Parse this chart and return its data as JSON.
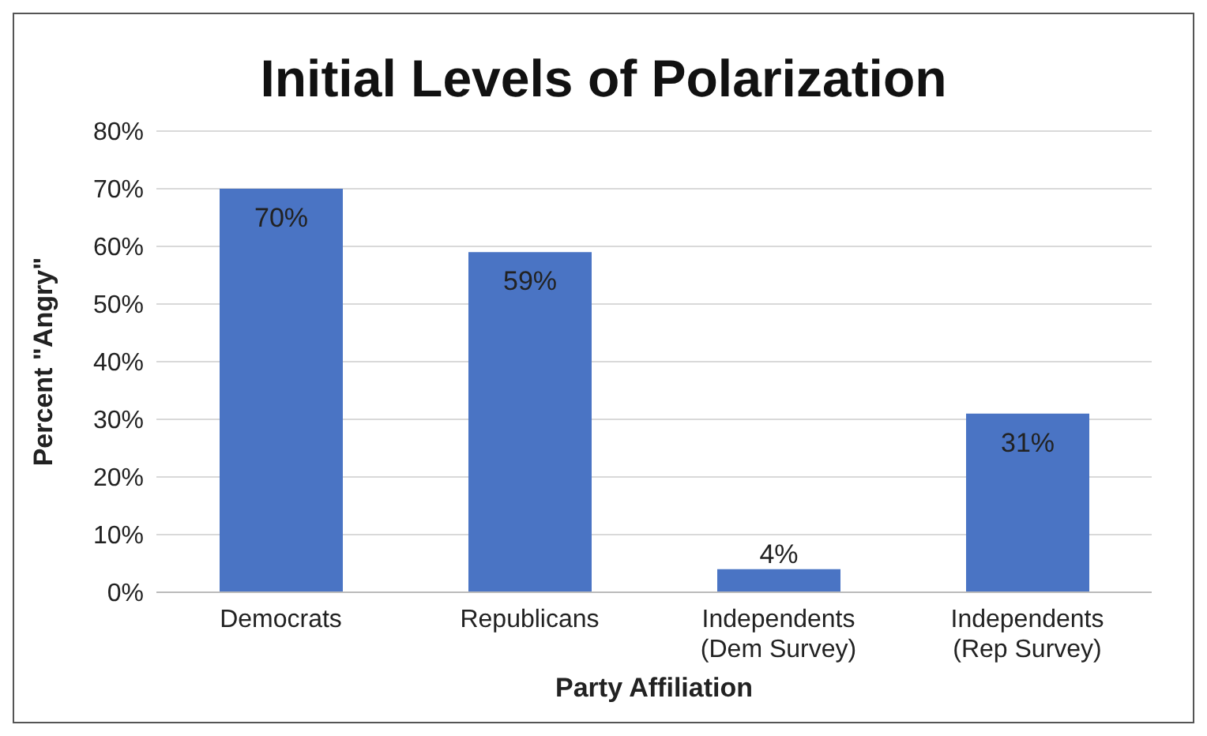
{
  "chart_data": {
    "type": "bar",
    "title": "Initial Levels of Polarization",
    "xlabel": "Party Affiliation",
    "ylabel": "Percent \"Angry\"",
    "categories": [
      "Democrats",
      "Republicans",
      "Independents\n(Dem Survey)",
      "Independents\n(Rep Survey)"
    ],
    "values": [
      70,
      59,
      4,
      31
    ],
    "color": "#4a74c4",
    "value_labels": [
      "70%",
      "59%",
      "4%",
      "31%"
    ],
    "ylim": [
      0,
      80
    ],
    "yticks": [
      {
        "value": 0,
        "label": "0%"
      },
      {
        "value": 10,
        "label": "10%"
      },
      {
        "value": 20,
        "label": "20%"
      },
      {
        "value": 30,
        "label": "30%"
      },
      {
        "value": 40,
        "label": "40%"
      },
      {
        "value": 50,
        "label": "50%"
      },
      {
        "value": 60,
        "label": "60%"
      },
      {
        "value": 70,
        "label": "70%"
      },
      {
        "value": 80,
        "label": "80%"
      }
    ],
    "grid": "y"
  }
}
